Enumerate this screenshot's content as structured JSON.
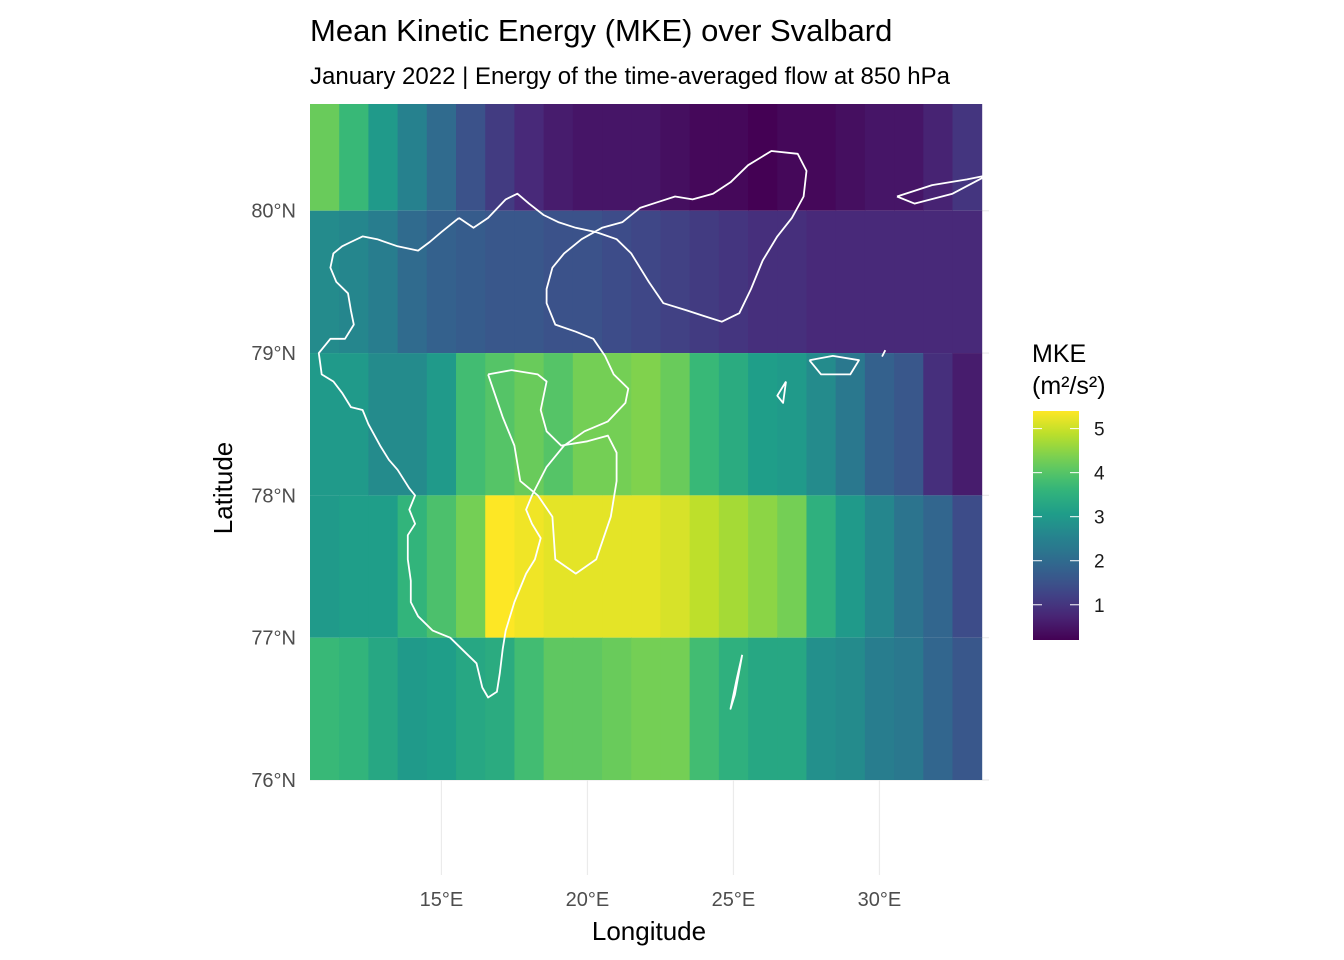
{
  "chart_data": {
    "type": "heatmap",
    "title": "Mean Kinetic Energy (MKE) over Svalbard",
    "subtitle": "January 2022 | Energy of the time-averaged flow at 850 hPa",
    "xlabel": "Longitude",
    "ylabel": "Latitude",
    "xlim": [
      10.5,
      33.75
    ],
    "ylim": [
      76.0,
      80.75
    ],
    "x_ticks": [
      15,
      20,
      25,
      30
    ],
    "x_tick_labels": [
      "15°E",
      "20°E",
      "25°E",
      "30°E"
    ],
    "y_ticks": [
      76,
      77,
      78,
      79,
      80
    ],
    "y_tick_labels": [
      "76°N",
      "77°N",
      "78°N",
      "79°N",
      "80°N"
    ],
    "grid": true,
    "colormap": "viridis",
    "cell_lon_width": 1.0,
    "lon_centers": [
      11,
      12,
      13,
      14,
      15,
      16,
      17,
      18,
      19,
      20,
      21,
      22,
      23,
      24,
      25,
      26,
      27,
      28,
      29,
      30,
      31,
      32,
      33
    ],
    "rows": [
      {
        "lat_min": 80.0,
        "lat_max": 80.75,
        "values": [
          4.2,
          3.7,
          3.0,
          2.5,
          2.0,
          1.5,
          1.1,
          0.8,
          0.6,
          0.5,
          0.5,
          0.5,
          0.4,
          0.3,
          0.3,
          0.2,
          0.3,
          0.3,
          0.4,
          0.5,
          0.5,
          0.7,
          1.0
        ]
      },
      {
        "lat_min": 79.0,
        "lat_max": 80.0,
        "values": [
          2.7,
          2.6,
          2.4,
          2.0,
          1.8,
          1.7,
          1.6,
          1.6,
          1.5,
          1.5,
          1.4,
          1.3,
          1.2,
          1.1,
          1.0,
          0.9,
          0.9,
          0.8,
          0.8,
          0.8,
          0.8,
          0.8,
          0.8
        ]
      },
      {
        "lat_min": 78.0,
        "lat_max": 79.0,
        "values": [
          3.0,
          3.0,
          2.7,
          2.7,
          3.0,
          3.8,
          4.0,
          4.2,
          4.0,
          4.3,
          4.3,
          4.4,
          4.2,
          3.7,
          3.4,
          3.1,
          3.0,
          2.7,
          2.3,
          1.8,
          1.6,
          0.9,
          0.6
        ]
      },
      {
        "lat_min": 77.0,
        "lat_max": 78.0,
        "values": [
          3.0,
          3.1,
          3.1,
          3.6,
          3.9,
          4.3,
          5.4,
          5.3,
          5.2,
          5.2,
          5.2,
          5.2,
          5.1,
          4.9,
          4.7,
          4.5,
          4.3,
          3.5,
          3.0,
          2.6,
          2.2,
          1.9,
          1.4
        ]
      },
      {
        "lat_min": 76.0,
        "lat_max": 77.0,
        "values": [
          3.7,
          3.6,
          3.3,
          3.0,
          3.1,
          3.3,
          3.4,
          3.8,
          4.1,
          4.1,
          4.2,
          4.3,
          4.3,
          3.8,
          3.5,
          3.3,
          3.3,
          2.8,
          2.7,
          2.4,
          2.3,
          1.9,
          1.6
        ]
      }
    ],
    "legend": {
      "title_line1": "MKE",
      "title_line2": "(m²/s²)",
      "ticks": [
        1,
        2,
        3,
        4,
        5
      ],
      "tick_labels": [
        "1",
        "2",
        "3",
        "4",
        "5"
      ],
      "min": 0.2,
      "max": 5.4,
      "placement": "right"
    },
    "coastline_color": "#ffffff",
    "coastlines": [
      [
        [
          15.6,
          79.95
        ],
        [
          15.0,
          79.85
        ],
        [
          14.6,
          79.78
        ],
        [
          14.2,
          79.72
        ],
        [
          13.5,
          79.75
        ],
        [
          12.8,
          79.8
        ],
        [
          12.3,
          79.82
        ],
        [
          11.9,
          79.78
        ],
        [
          11.6,
          79.75
        ],
        [
          11.3,
          79.7
        ],
        [
          11.2,
          79.6
        ],
        [
          11.4,
          79.5
        ],
        [
          11.8,
          79.42
        ],
        [
          11.9,
          79.3
        ],
        [
          12.0,
          79.2
        ],
        [
          11.7,
          79.1
        ],
        [
          11.2,
          79.1
        ],
        [
          10.8,
          79.0
        ],
        [
          10.9,
          78.85
        ],
        [
          11.3,
          78.8
        ],
        [
          11.6,
          78.72
        ],
        [
          11.9,
          78.62
        ],
        [
          12.3,
          78.6
        ],
        [
          12.5,
          78.5
        ],
        [
          12.9,
          78.35
        ],
        [
          13.2,
          78.25
        ],
        [
          13.5,
          78.18
        ],
        [
          13.9,
          78.05
        ],
        [
          14.1,
          78.0
        ],
        [
          13.9,
          77.9
        ],
        [
          14.1,
          77.8
        ],
        [
          13.85,
          77.72
        ],
        [
          13.85,
          77.55
        ],
        [
          13.95,
          77.4
        ],
        [
          13.95,
          77.25
        ],
        [
          14.2,
          77.15
        ],
        [
          14.7,
          77.05
        ],
        [
          15.3,
          77.0
        ],
        [
          15.9,
          76.88
        ],
        [
          16.2,
          76.82
        ],
        [
          16.4,
          76.65
        ],
        [
          16.6,
          76.58
        ],
        [
          16.9,
          76.62
        ],
        [
          17.0,
          76.75
        ],
        [
          17.1,
          76.92
        ],
        [
          17.2,
          77.05
        ],
        [
          17.5,
          77.25
        ],
        [
          17.9,
          77.45
        ],
        [
          18.2,
          77.55
        ],
        [
          18.4,
          77.7
        ],
        [
          18.1,
          77.8
        ],
        [
          17.9,
          77.9
        ],
        [
          18.1,
          78.0
        ],
        [
          18.6,
          78.2
        ],
        [
          19.2,
          78.35
        ],
        [
          19.9,
          78.45
        ],
        [
          20.7,
          78.52
        ],
        [
          21.3,
          78.65
        ],
        [
          21.4,
          78.75
        ],
        [
          20.9,
          78.85
        ],
        [
          20.6,
          78.98
        ],
        [
          20.2,
          79.1
        ],
        [
          19.6,
          79.15
        ],
        [
          18.9,
          79.2
        ],
        [
          18.6,
          79.35
        ],
        [
          18.6,
          79.45
        ],
        [
          18.8,
          79.6
        ],
        [
          19.2,
          79.7
        ],
        [
          19.8,
          79.8
        ],
        [
          20.5,
          79.88
        ],
        [
          21.2,
          79.92
        ],
        [
          21.8,
          80.02
        ],
        [
          22.4,
          80.06
        ],
        [
          23.0,
          80.1
        ],
        [
          23.6,
          80.08
        ],
        [
          24.3,
          80.12
        ],
        [
          24.9,
          80.2
        ],
        [
          25.5,
          80.32
        ],
        [
          26.3,
          80.42
        ],
        [
          27.2,
          80.4
        ],
        [
          27.5,
          80.28
        ],
        [
          27.4,
          80.1
        ],
        [
          27.0,
          79.95
        ],
        [
          26.5,
          79.82
        ],
        [
          26.0,
          79.65
        ],
        [
          25.6,
          79.45
        ],
        [
          25.2,
          79.28
        ],
        [
          24.6,
          79.22
        ],
        [
          24.0,
          79.26
        ],
        [
          23.4,
          79.3
        ],
        [
          22.6,
          79.35
        ],
        [
          22.1,
          79.5
        ],
        [
          21.5,
          79.7
        ],
        [
          21.0,
          79.8
        ],
        [
          20.3,
          79.85
        ],
        [
          19.6,
          79.88
        ],
        [
          19.0,
          79.92
        ],
        [
          18.5,
          79.97
        ],
        [
          18.0,
          80.05
        ],
        [
          17.6,
          80.12
        ],
        [
          17.2,
          80.08
        ],
        [
          16.6,
          79.95
        ],
        [
          16.1,
          79.88
        ],
        [
          15.6,
          79.95
        ]
      ],
      [
        [
          16.6,
          78.85
        ],
        [
          17.4,
          78.88
        ],
        [
          18.3,
          78.85
        ],
        [
          18.6,
          78.8
        ],
        [
          18.4,
          78.6
        ],
        [
          18.6,
          78.45
        ],
        [
          19.1,
          78.35
        ],
        [
          20.0,
          78.38
        ],
        [
          20.7,
          78.42
        ],
        [
          21.0,
          78.3
        ],
        [
          21.0,
          78.1
        ],
        [
          20.8,
          77.85
        ],
        [
          20.3,
          77.55
        ],
        [
          19.6,
          77.45
        ],
        [
          18.9,
          77.55
        ],
        [
          18.8,
          77.85
        ],
        [
          18.3,
          78.0
        ],
        [
          17.7,
          78.1
        ],
        [
          17.5,
          78.35
        ],
        [
          17.1,
          78.55
        ],
        [
          16.6,
          78.85
        ]
      ],
      [
        [
          25.3,
          76.88
        ],
        [
          25.1,
          76.7
        ],
        [
          24.9,
          76.5
        ],
        [
          25.05,
          76.6
        ],
        [
          25.3,
          76.88
        ]
      ],
      [
        [
          27.6,
          78.95
        ],
        [
          28.4,
          78.98
        ],
        [
          29.3,
          78.95
        ],
        [
          29.0,
          78.85
        ],
        [
          28.0,
          78.85
        ],
        [
          27.6,
          78.95
        ]
      ],
      [
        [
          26.8,
          78.8
        ],
        [
          26.7,
          78.65
        ],
        [
          26.5,
          78.7
        ],
        [
          26.8,
          78.8
        ]
      ],
      [
        [
          30.6,
          80.1
        ],
        [
          31.8,
          80.18
        ],
        [
          33.0,
          80.22
        ],
        [
          33.7,
          80.25
        ],
        [
          32.5,
          80.12
        ],
        [
          31.2,
          80.05
        ],
        [
          30.6,
          80.1
        ]
      ],
      [
        [
          30.2,
          79.02
        ],
        [
          30.1,
          78.98
        ],
        [
          30.2,
          79.02
        ]
      ]
    ]
  }
}
